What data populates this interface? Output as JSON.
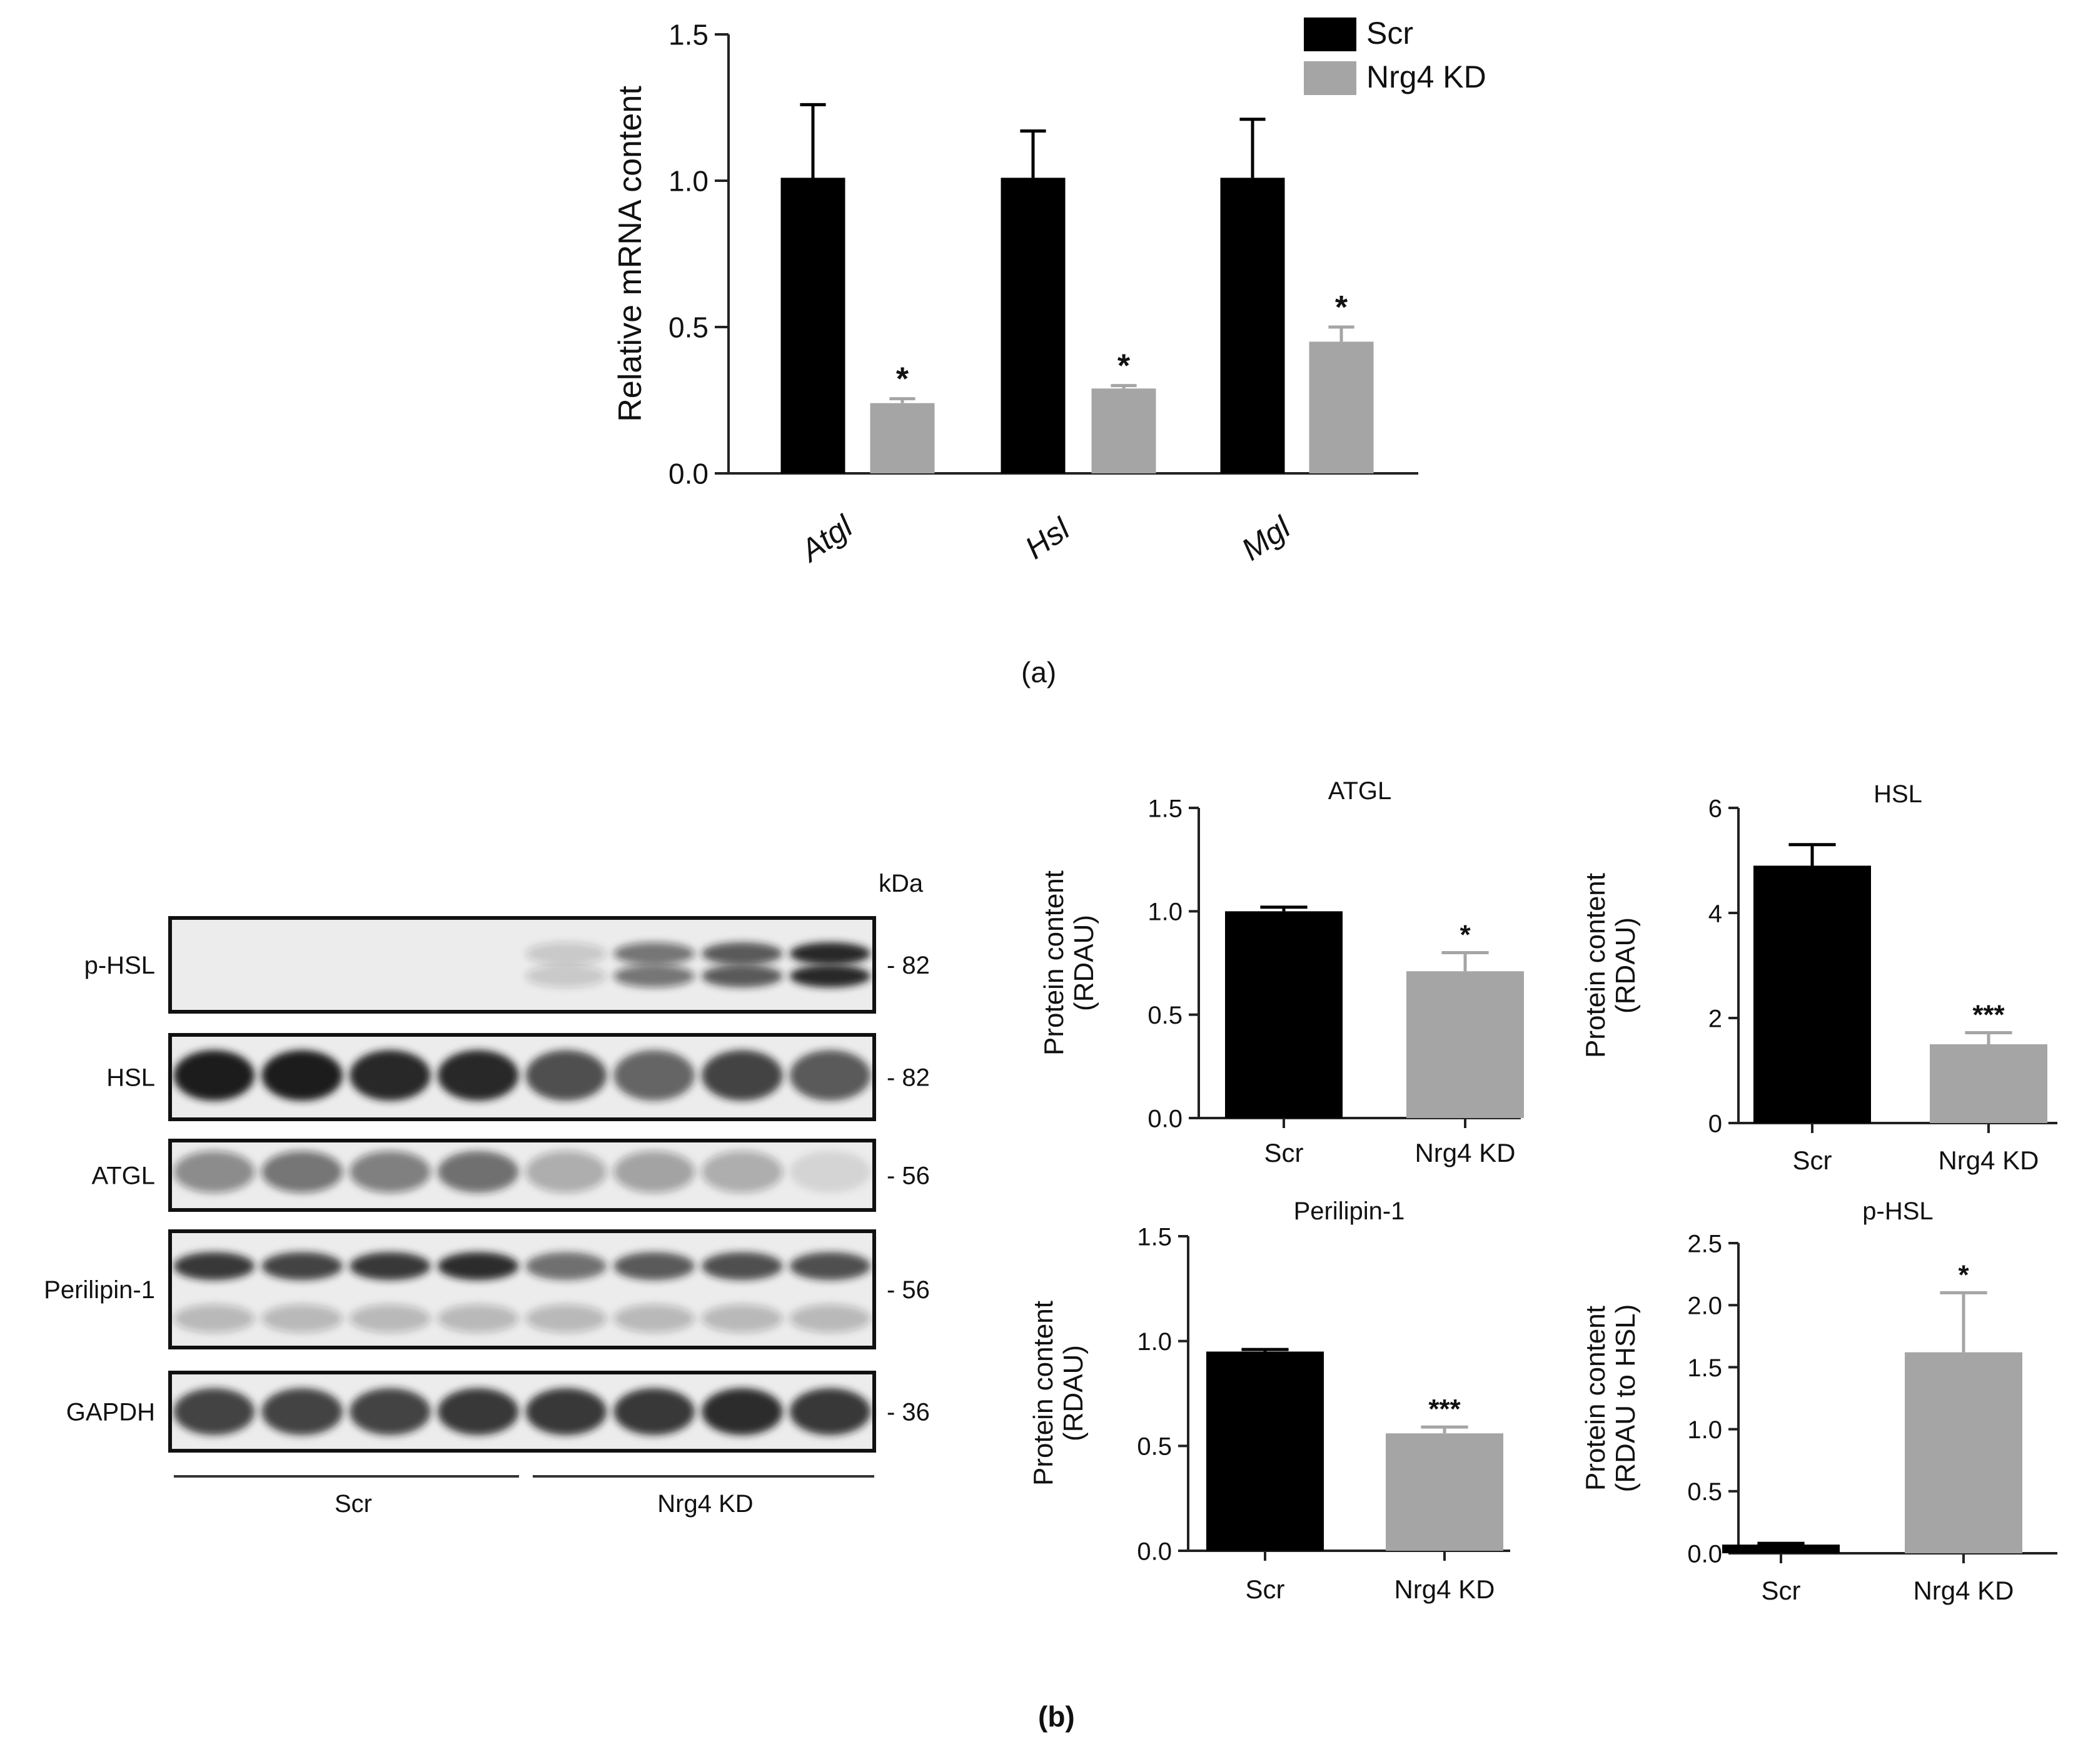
{
  "panel_labels": {
    "a": "(a)",
    "b": "(b)"
  },
  "chart_data": [
    {
      "id": "mrna",
      "type": "bar",
      "title": "",
      "xlabel": "",
      "ylabel": "Relative mRNA content",
      "categories": [
        "Atgl",
        "Hsl",
        "Mgl"
      ],
      "categories_italic": true,
      "series": [
        {
          "name": "Scr",
          "color": "#000000",
          "values": [
            1.01,
            1.01,
            1.01
          ],
          "errors": [
            0.25,
            0.16,
            0.2
          ],
          "sig": [
            "",
            "",
            ""
          ]
        },
        {
          "name": "Nrg4 KD",
          "color": "#a5a5a5",
          "values": [
            0.24,
            0.29,
            0.45
          ],
          "errors": [
            0.015,
            0.01,
            0.05
          ],
          "sig": [
            "*",
            "*",
            "*"
          ]
        }
      ],
      "ylim": [
        0,
        1.5
      ],
      "yticks": [
        "0.0",
        "0.5",
        "1.0",
        "1.5"
      ],
      "ytick_values": [
        0,
        0.5,
        1.0,
        1.5
      ],
      "legend": "top-right"
    },
    {
      "id": "atgl",
      "type": "bar",
      "title": "ATGL",
      "ylabel": [
        "Protein content",
        "(RDAU)"
      ],
      "categories": [
        "Scr",
        "Nrg4 KD"
      ],
      "colors": [
        "#000000",
        "#a5a5a5"
      ],
      "values": [
        1.0,
        0.71
      ],
      "errors": [
        0.02,
        0.09
      ],
      "sig": [
        "",
        "*"
      ],
      "ylim": [
        0,
        1.5
      ],
      "yticks": [
        "0.0",
        "0.5",
        "1.0",
        "1.5"
      ],
      "ytick_values": [
        0,
        0.5,
        1.0,
        1.5
      ]
    },
    {
      "id": "hsl",
      "type": "bar",
      "title": "HSL",
      "ylabel": [
        "Protein content",
        "(RDAU)"
      ],
      "categories": [
        "Scr",
        "Nrg4 KD"
      ],
      "colors": [
        "#000000",
        "#a5a5a5"
      ],
      "values": [
        4.9,
        1.5
      ],
      "errors": [
        0.4,
        0.22
      ],
      "sig": [
        "",
        "***"
      ],
      "ylim": [
        0,
        6
      ],
      "yticks": [
        "0",
        "2",
        "4",
        "6"
      ],
      "ytick_values": [
        0,
        2,
        4,
        6
      ]
    },
    {
      "id": "perilipin",
      "type": "bar",
      "title": "Perilipin-1",
      "ylabel": [
        "Protein content",
        "(RDAU)"
      ],
      "categories": [
        "Scr",
        "Nrg4 KD"
      ],
      "colors": [
        "#000000",
        "#a5a5a5"
      ],
      "values": [
        0.95,
        0.56
      ],
      "errors": [
        0.01,
        0.03
      ],
      "sig": [
        "",
        "***"
      ],
      "ylim": [
        0,
        1.5
      ],
      "yticks": [
        "0.0",
        "0.5",
        "1.0",
        "1.5"
      ],
      "ytick_values": [
        0,
        0.5,
        1.0,
        1.5
      ]
    },
    {
      "id": "phsl",
      "type": "bar",
      "title": "p-HSL",
      "ylabel": [
        "Protein content",
        "(RDAU to HSL)"
      ],
      "categories": [
        "Scr",
        "Nrg4 KD"
      ],
      "colors": [
        "#000000",
        "#a5a5a5"
      ],
      "values": [
        0.07,
        1.62
      ],
      "errors": [
        0.01,
        0.48
      ],
      "sig": [
        "",
        "*"
      ],
      "ylim": [
        0,
        2.5
      ],
      "yticks": [
        "0.0",
        "0.5",
        "1.0",
        "1.5",
        "2.0",
        "2.5"
      ],
      "ytick_values": [
        0,
        0.5,
        1.0,
        1.5,
        2.0,
        2.5
      ]
    }
  ],
  "blot": {
    "unit": "kDa",
    "rows": [
      {
        "label": "p-HSL",
        "size": "- 82"
      },
      {
        "label": "HSL",
        "size": "- 82"
      },
      {
        "label": "ATGL",
        "size": "- 56"
      },
      {
        "label": "Perilipin-1",
        "size": "- 56"
      },
      {
        "label": "GAPDH",
        "size": "- 36"
      }
    ],
    "groups": [
      "Scr",
      "Nrg4 KD"
    ]
  }
}
